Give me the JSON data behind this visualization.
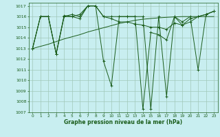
{
  "title": "Graphe pression niveau de la mer (hPa)",
  "bg_color": "#c8eef0",
  "grid_color": "#a0c8b8",
  "line_color": "#1a5c1a",
  "xlim": [
    -0.5,
    23.5
  ],
  "ylim": [
    1007,
    1017.3
  ],
  "xticks": [
    0,
    1,
    2,
    3,
    4,
    5,
    6,
    7,
    8,
    9,
    10,
    11,
    12,
    13,
    14,
    15,
    16,
    17,
    18,
    19,
    20,
    21,
    22,
    23
  ],
  "yticks": [
    1007,
    1008,
    1009,
    1010,
    1011,
    1012,
    1013,
    1014,
    1015,
    1016,
    1017
  ],
  "s1": [
    1013.0,
    1016.0,
    1016.0,
    1012.5,
    1016.0,
    1016.2,
    1016.0,
    1017.0,
    1017.0,
    1011.8,
    1009.5,
    1016.0,
    1016.0,
    1016.0,
    1007.3,
    1014.5,
    1014.3,
    1013.8,
    1016.0,
    1015.5,
    1016.0,
    1011.0,
    1016.2,
    1016.5
  ],
  "s2": [
    1013.0,
    1016.0,
    1016.0,
    1012.5,
    1016.1,
    1016.0,
    1016.2,
    1017.0,
    1017.0,
    1016.0,
    1015.8,
    1015.5,
    1015.5,
    1015.3,
    1015.2,
    1015.0,
    1015.0,
    1014.8,
    1015.4,
    1015.2,
    1015.8,
    1016.0,
    1016.2,
    1016.5
  ],
  "s3": [
    1013.0,
    1013.2,
    1013.4,
    1013.65,
    1013.9,
    1014.1,
    1014.3,
    1014.55,
    1014.75,
    1014.95,
    1015.15,
    1015.35,
    1015.5,
    1015.65,
    1015.75,
    1015.82,
    1015.88,
    1015.93,
    1015.97,
    1016.0,
    1016.0,
    1016.0,
    1016.0,
    1016.0
  ],
  "s4": [
    1013.0,
    1016.0,
    1016.0,
    1012.5,
    1016.0,
    1016.0,
    1015.8,
    1017.0,
    1017.0,
    1016.0,
    1016.0,
    1016.0,
    1016.0,
    1016.0,
    1016.0,
    1007.3,
    1016.0,
    1008.5,
    1016.0,
    1015.2,
    1015.5,
    1016.0,
    1016.2,
    1016.5
  ]
}
